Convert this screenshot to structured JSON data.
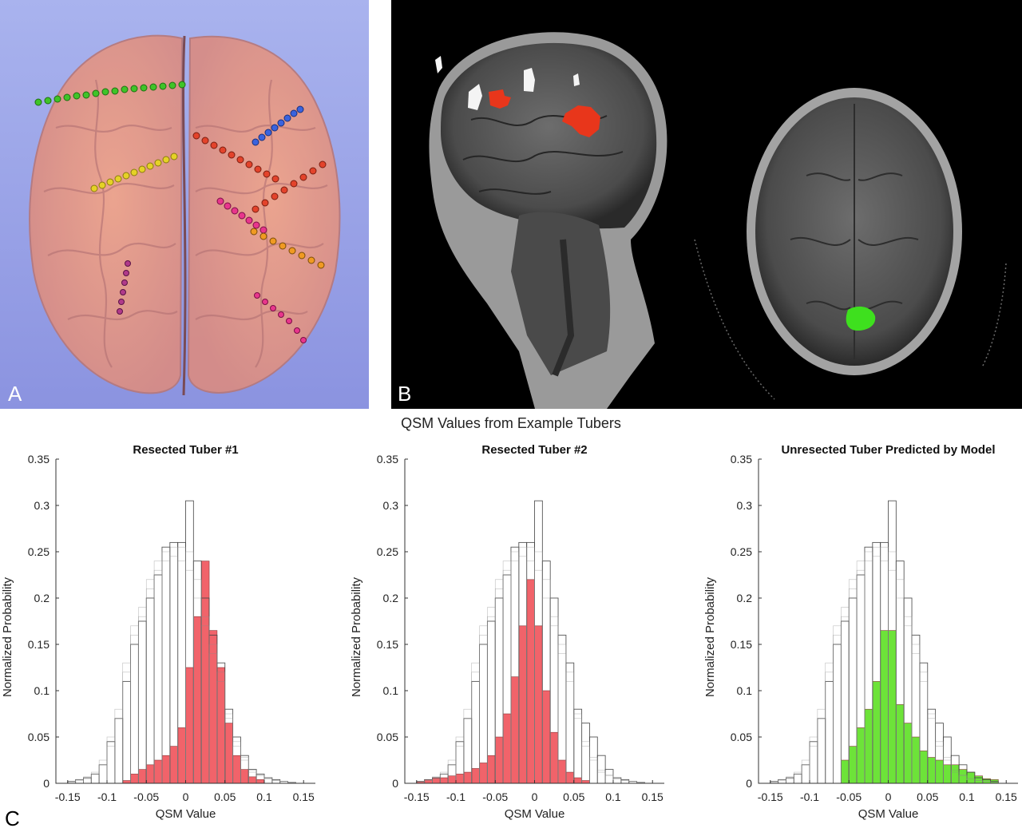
{
  "panels": {
    "a_letter": "A",
    "b_letter": "B",
    "c_letter": "C"
  },
  "figure_title": "QSM Values from Example Tubers",
  "colors": {
    "resected": "#f0525a",
    "unresected": "#5de023",
    "outline": "#555555"
  },
  "chart_data": [
    {
      "type": "bar",
      "title": "Resected Tuber #1",
      "xlabel": "QSM Value",
      "ylabel": "Normalized Probability",
      "xlim": [
        -0.165,
        0.165
      ],
      "ylim": [
        0,
        0.35
      ],
      "xticks": [
        "-0.15",
        "-0.1",
        "-0.05",
        "0",
        "0.05",
        "0.1",
        "0.15"
      ],
      "yticks": [
        "0",
        "0.05",
        "0.1",
        "0.15",
        "0.2",
        "0.25",
        "0.3",
        "0.35"
      ],
      "bin_width": 0.01,
      "bin_centers": [
        -0.145,
        -0.135,
        -0.125,
        -0.115,
        -0.105,
        -0.095,
        -0.085,
        -0.075,
        -0.065,
        -0.055,
        -0.045,
        -0.035,
        -0.025,
        -0.015,
        -0.005,
        0.005,
        0.015,
        0.025,
        0.035,
        0.045,
        0.055,
        0.065,
        0.075,
        0.085,
        0.095,
        0.105,
        0.115,
        0.125,
        0.135,
        0.145
      ],
      "background_series": [
        {
          "name": "",
          "values": [
            0.002,
            0.004,
            0.006,
            0.01,
            0.02,
            0.045,
            0.07,
            0.11,
            0.15,
            0.175,
            0.2,
            0.225,
            0.255,
            0.26,
            0.26,
            0.305,
            0.24,
            0.2,
            0.16,
            0.13,
            0.08,
            0.05,
            0.03,
            0.015,
            0.01,
            0.006,
            0.004,
            0.002,
            0.001,
            0
          ]
        },
        {
          "name": "",
          "values": [
            0.002,
            0.004,
            0.007,
            0.012,
            0.025,
            0.05,
            0.08,
            0.13,
            0.17,
            0.19,
            0.22,
            0.24,
            0.25,
            0.245,
            0.24,
            0.23,
            0.2,
            0.17,
            0.14,
            0.11,
            0.07,
            0.04,
            0.025,
            0.012,
            0.008,
            0.005,
            0.003,
            0.002,
            0.001,
            0
          ]
        },
        {
          "name": "",
          "values": [
            0.001,
            0.003,
            0.005,
            0.01,
            0.02,
            0.04,
            0.07,
            0.12,
            0.16,
            0.18,
            0.21,
            0.23,
            0.24,
            0.255,
            0.255,
            0.25,
            0.22,
            0.18,
            0.15,
            0.12,
            0.075,
            0.045,
            0.028,
            0.014,
            0.009,
            0.005,
            0.003,
            0.002,
            0.001,
            0
          ]
        }
      ],
      "highlight": {
        "name": "",
        "color": "#f0525a",
        "values": [
          0,
          0,
          0,
          0,
          0,
          0,
          0,
          0.003,
          0.01,
          0.015,
          0.02,
          0.025,
          0.03,
          0.04,
          0.06,
          0.125,
          0.18,
          0.24,
          0.165,
          0.125,
          0.065,
          0.03,
          0.015,
          0.007,
          0.004,
          0,
          0,
          0,
          0,
          0
        ]
      }
    },
    {
      "type": "bar",
      "title": "Resected Tuber #2",
      "xlabel": "QSM Value",
      "ylabel": "Normalized Probability",
      "xlim": [
        -0.165,
        0.165
      ],
      "ylim": [
        0,
        0.35
      ],
      "xticks": [
        "-0.15",
        "-0.1",
        "-0.05",
        "0",
        "0.05",
        "0.1",
        "0.15"
      ],
      "yticks": [
        "0",
        "0.05",
        "0.1",
        "0.15",
        "0.2",
        "0.25",
        "0.3",
        "0.35"
      ],
      "bin_width": 0.01,
      "bin_centers": [
        -0.145,
        -0.135,
        -0.125,
        -0.115,
        -0.105,
        -0.095,
        -0.085,
        -0.075,
        -0.065,
        -0.055,
        -0.045,
        -0.035,
        -0.025,
        -0.015,
        -0.005,
        0.005,
        0.015,
        0.025,
        0.035,
        0.045,
        0.055,
        0.065,
        0.075,
        0.085,
        0.095,
        0.105,
        0.115,
        0.125,
        0.135,
        0.145
      ],
      "background_series": [
        {
          "name": "",
          "values": [
            0.002,
            0.004,
            0.006,
            0.01,
            0.02,
            0.045,
            0.07,
            0.11,
            0.15,
            0.175,
            0.2,
            0.225,
            0.255,
            0.26,
            0.26,
            0.305,
            0.24,
            0.2,
            0.16,
            0.13,
            0.08,
            0.065,
            0.05,
            0.03,
            0.015,
            0.006,
            0.004,
            0.002,
            0.001,
            0
          ]
        },
        {
          "name": "",
          "values": [
            0.002,
            0.004,
            0.007,
            0.012,
            0.025,
            0.05,
            0.08,
            0.13,
            0.17,
            0.19,
            0.22,
            0.24,
            0.25,
            0.245,
            0.24,
            0.23,
            0.2,
            0.17,
            0.14,
            0.11,
            0.07,
            0.04,
            0.025,
            0.012,
            0.008,
            0.005,
            0.003,
            0.002,
            0.001,
            0
          ]
        },
        {
          "name": "",
          "values": [
            0.001,
            0.003,
            0.005,
            0.01,
            0.02,
            0.04,
            0.07,
            0.12,
            0.16,
            0.18,
            0.21,
            0.23,
            0.24,
            0.255,
            0.255,
            0.25,
            0.22,
            0.18,
            0.15,
            0.12,
            0.075,
            0.045,
            0.028,
            0.014,
            0.009,
            0.005,
            0.003,
            0.002,
            0.001,
            0
          ]
        }
      ],
      "highlight": {
        "name": "",
        "color": "#f0525a",
        "values": [
          0.002,
          0.004,
          0.006,
          0.006,
          0.008,
          0.01,
          0.012,
          0.016,
          0.022,
          0.03,
          0.05,
          0.075,
          0.115,
          0.17,
          0.22,
          0.17,
          0.1,
          0.055,
          0.025,
          0.012,
          0.006,
          0.003,
          0,
          0,
          0,
          0,
          0,
          0,
          0,
          0
        ]
      }
    },
    {
      "type": "bar",
      "title": "Unresected Tuber Predicted by Model",
      "xlabel": "QSM Value",
      "ylabel": "Normalized Probability",
      "xlim": [
        -0.165,
        0.165
      ],
      "ylim": [
        0,
        0.35
      ],
      "xticks": [
        "-0.15",
        "-0.1",
        "-0.05",
        "0",
        "0.05",
        "0.1",
        "0.15"
      ],
      "yticks": [
        "0",
        "0.05",
        "0.1",
        "0.15",
        "0.2",
        "0.25",
        "0.3",
        "0.35"
      ],
      "bin_width": 0.01,
      "bin_centers": [
        -0.145,
        -0.135,
        -0.125,
        -0.115,
        -0.105,
        -0.095,
        -0.085,
        -0.075,
        -0.065,
        -0.055,
        -0.045,
        -0.035,
        -0.025,
        -0.015,
        -0.005,
        0.005,
        0.015,
        0.025,
        0.035,
        0.045,
        0.055,
        0.065,
        0.075,
        0.085,
        0.095,
        0.105,
        0.115,
        0.125,
        0.135,
        0.145
      ],
      "background_series": [
        {
          "name": "",
          "values": [
            0.002,
            0.004,
            0.006,
            0.01,
            0.02,
            0.045,
            0.07,
            0.11,
            0.15,
            0.175,
            0.2,
            0.225,
            0.255,
            0.26,
            0.26,
            0.305,
            0.24,
            0.2,
            0.16,
            0.13,
            0.08,
            0.065,
            0.05,
            0.03,
            0.02,
            0.012,
            0.006,
            0.004,
            0.002,
            0
          ]
        },
        {
          "name": "",
          "values": [
            0.002,
            0.004,
            0.007,
            0.012,
            0.025,
            0.05,
            0.08,
            0.13,
            0.17,
            0.19,
            0.22,
            0.24,
            0.25,
            0.245,
            0.24,
            0.23,
            0.2,
            0.17,
            0.14,
            0.11,
            0.07,
            0.04,
            0.025,
            0.012,
            0.008,
            0.005,
            0.003,
            0.002,
            0.001,
            0
          ]
        },
        {
          "name": "",
          "values": [
            0.001,
            0.003,
            0.005,
            0.01,
            0.02,
            0.04,
            0.07,
            0.12,
            0.16,
            0.18,
            0.21,
            0.23,
            0.24,
            0.255,
            0.255,
            0.25,
            0.22,
            0.18,
            0.15,
            0.12,
            0.075,
            0.045,
            0.028,
            0.014,
            0.009,
            0.005,
            0.003,
            0.002,
            0.001,
            0
          ]
        }
      ],
      "highlight": {
        "name": "",
        "color": "#5de023",
        "values": [
          0,
          0,
          0,
          0,
          0,
          0,
          0,
          0,
          0,
          0.025,
          0.04,
          0.06,
          0.08,
          0.11,
          0.165,
          0.165,
          0.085,
          0.065,
          0.05,
          0.035,
          0.028,
          0.025,
          0.02,
          0.02,
          0.015,
          0.012,
          0.008,
          0.005,
          0.004,
          0
        ]
      }
    }
  ]
}
